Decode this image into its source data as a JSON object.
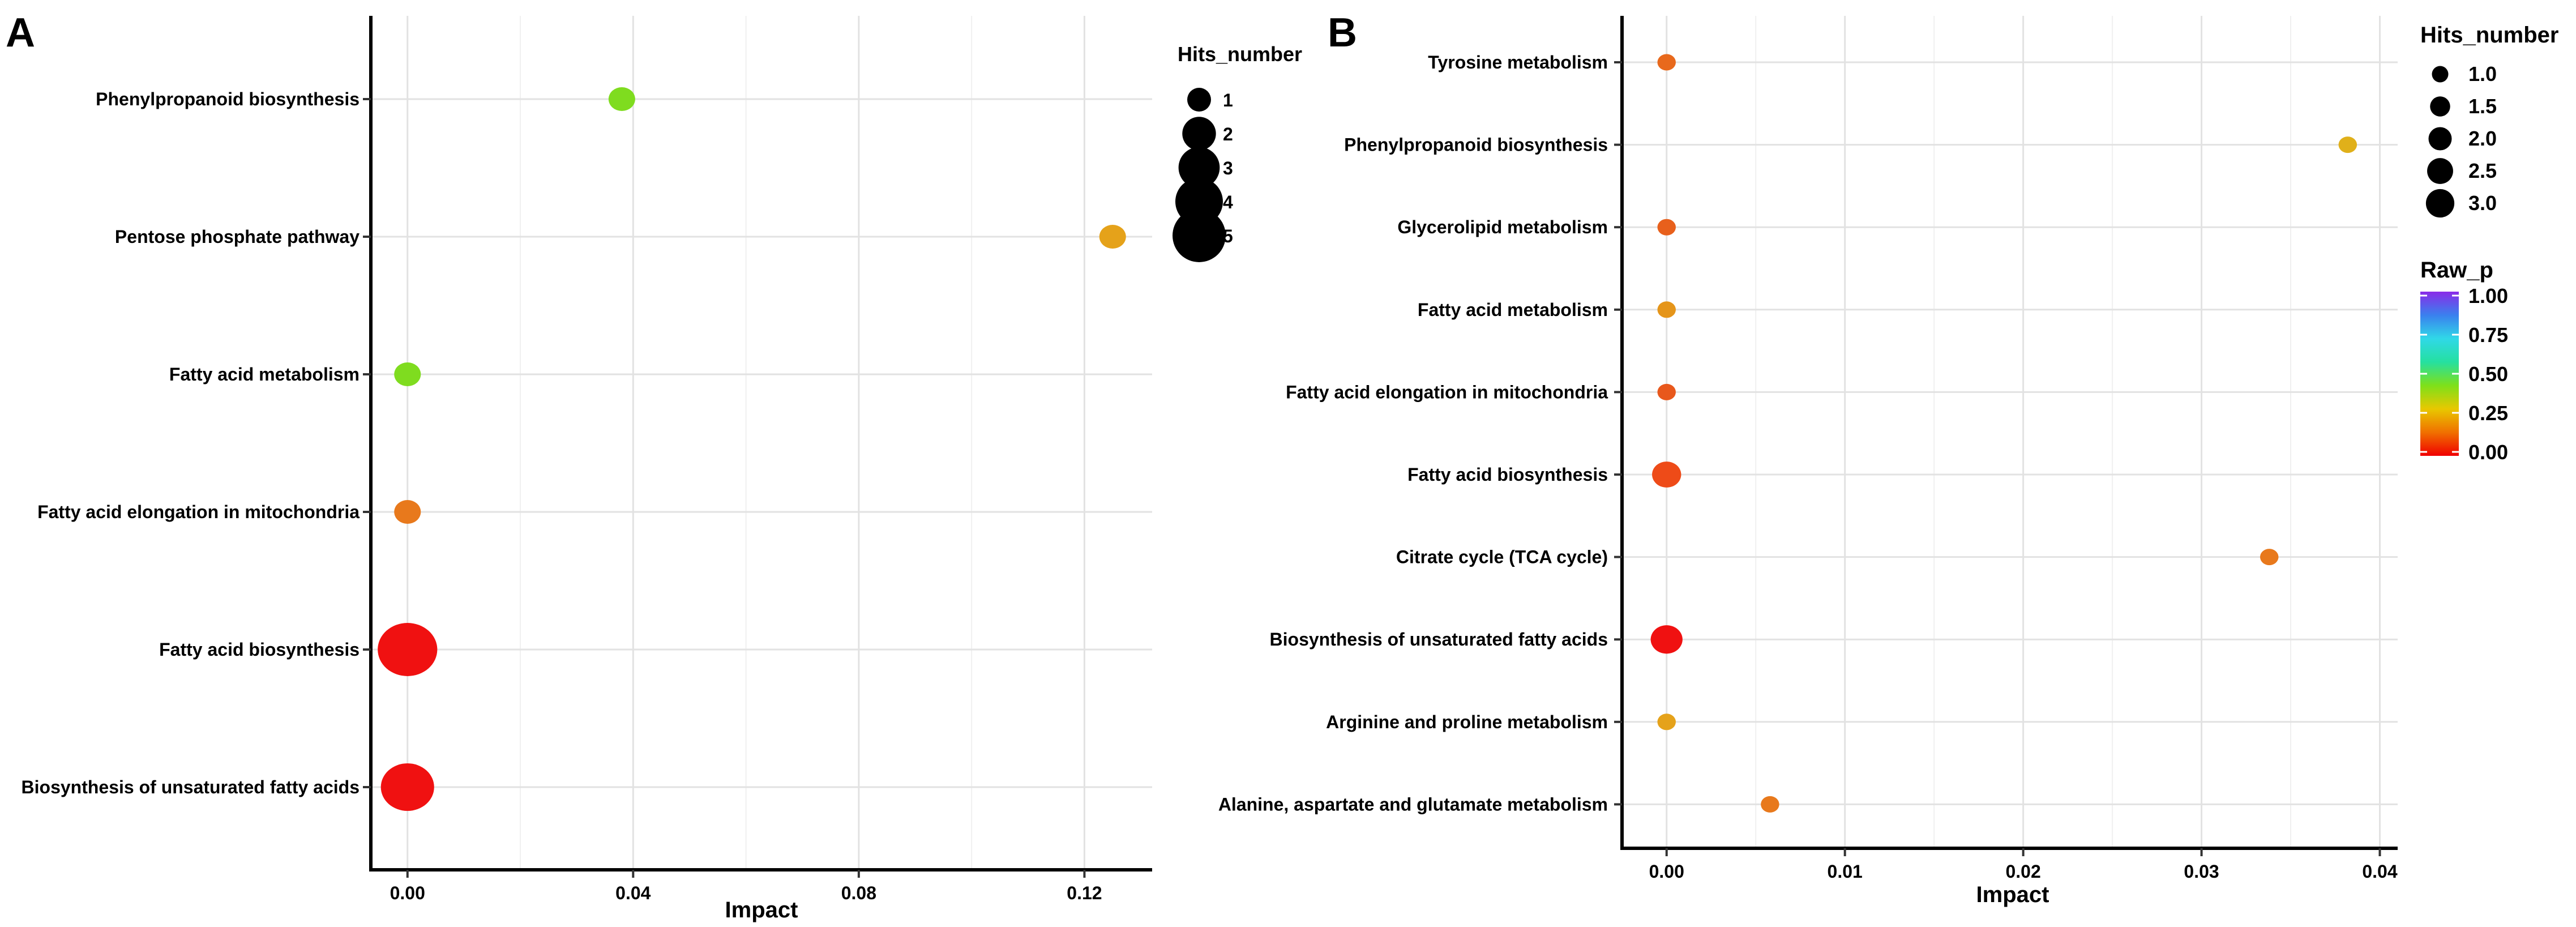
{
  "figure": {
    "panels": [
      "A",
      "B"
    ]
  },
  "chart_data": [
    {
      "panel": "A",
      "type": "scatter",
      "title": "",
      "xlabel": "Impact",
      "ylabel": "",
      "xlim": [
        -0.0065,
        0.132
      ],
      "x_ticks": [
        0.0,
        0.04,
        0.08,
        0.12
      ],
      "x_tick_labels": [
        "0.00",
        "0.04",
        "0.08",
        "0.12"
      ],
      "categories": [
        "Phenylpropanoid biosynthesis",
        "Pentose phosphate pathway",
        "Fatty acid metabolism",
        "Fatty acid elongation in mitochondria",
        "Fatty acid biosynthesis",
        "Biosynthesis of unsaturated fatty acids"
      ],
      "points": [
        {
          "pathway": "Phenylpropanoid biosynthesis",
          "impact": 0.038,
          "hits": 1,
          "raw_p": 0.27,
          "color": "#7fdc1f"
        },
        {
          "pathway": "Pentose phosphate pathway",
          "impact": 0.125,
          "hits": 1,
          "raw_p": 0.12,
          "color": "#e5a21a"
        },
        {
          "pathway": "Fatty acid metabolism",
          "impact": 0.0,
          "hits": 1,
          "raw_p": 0.27,
          "color": "#7fdc1f"
        },
        {
          "pathway": "Fatty acid elongation in mitochondria",
          "impact": 0.0,
          "hits": 1,
          "raw_p": 0.08,
          "color": "#e8791c"
        },
        {
          "pathway": "Fatty acid biosynthesis",
          "impact": 0.0,
          "hits": 5,
          "raw_p": 0.0,
          "color": "#f01111"
        },
        {
          "pathway": "Biosynthesis of unsaturated fatty acids",
          "impact": 0.0,
          "hits": 4,
          "raw_p": 0.0,
          "color": "#f01111"
        }
      ],
      "size_legend": {
        "title": "Hits_number",
        "labels": [
          "1",
          "2",
          "3",
          "4",
          "5"
        ],
        "values": [
          1,
          2,
          3,
          4,
          5
        ]
      }
    },
    {
      "panel": "B",
      "type": "scatter",
      "title": "",
      "xlabel": "Impact",
      "ylabel": "",
      "xlim": [
        -0.0025,
        0.041
      ],
      "x_ticks": [
        0.0,
        0.01,
        0.02,
        0.03,
        0.04
      ],
      "x_tick_labels": [
        "0.00",
        "0.01",
        "0.02",
        "0.03",
        "0.04"
      ],
      "categories": [
        "Tyrosine metabolism",
        "Phenylpropanoid biosynthesis",
        "Glycerolipid metabolism",
        "Fatty acid metabolism",
        "Fatty acid elongation in mitochondria",
        "Fatty acid biosynthesis",
        "Citrate cycle (TCA cycle)",
        "Biosynthesis of unsaturated fatty acids",
        "Arginine and proline metabolism",
        "Alanine, aspartate and glutamate metabolism"
      ],
      "points": [
        {
          "pathway": "Tyrosine metabolism",
          "impact": 0.0,
          "hits": 1,
          "raw_p": 0.06,
          "color": "#e8691c"
        },
        {
          "pathway": "Phenylpropanoid biosynthesis",
          "impact": 0.0382,
          "hits": 1,
          "raw_p": 0.15,
          "color": "#e0b01a"
        },
        {
          "pathway": "Glycerolipid metabolism",
          "impact": 0.0,
          "hits": 1,
          "raw_p": 0.05,
          "color": "#e8601c"
        },
        {
          "pathway": "Fatty acid metabolism",
          "impact": 0.0,
          "hits": 1,
          "raw_p": 0.11,
          "color": "#e5951a"
        },
        {
          "pathway": "Fatty acid elongation in mitochondria",
          "impact": 0.0,
          "hits": 1,
          "raw_p": 0.04,
          "color": "#e8581c"
        },
        {
          "pathway": "Fatty acid biosynthesis",
          "impact": 0.0,
          "hits": 2.5,
          "raw_p": 0.03,
          "color": "#ee4b18"
        },
        {
          "pathway": "Citrate cycle (TCA cycle)",
          "impact": 0.0338,
          "hits": 1,
          "raw_p": 0.08,
          "color": "#e8791c"
        },
        {
          "pathway": "Biosynthesis of unsaturated fatty acids",
          "impact": 0.0,
          "hits": 3,
          "raw_p": 0.0,
          "color": "#f01111"
        },
        {
          "pathway": "Arginine and proline metabolism",
          "impact": 0.0,
          "hits": 1,
          "raw_p": 0.12,
          "color": "#e5a21a"
        },
        {
          "pathway": "Alanine, aspartate and glutamate metabolism",
          "impact": 0.0058,
          "hits": 1,
          "raw_p": 0.08,
          "color": "#e8791c"
        }
      ],
      "size_legend": {
        "title": "Hits_number",
        "labels": [
          "1.0",
          "1.5",
          "2.0",
          "2.5",
          "3.0"
        ],
        "values": [
          1.0,
          1.5,
          2.0,
          2.5,
          3.0
        ]
      },
      "color_legend": {
        "title": "Raw_p",
        "labels": [
          "1.00",
          "0.75",
          "0.50",
          "0.25",
          "0.00"
        ],
        "values": [
          1.0,
          0.75,
          0.5,
          0.25,
          0.0
        ],
        "range": [
          0,
          1
        ],
        "colors": [
          "#f00000",
          "#f07000",
          "#e8c800",
          "#7ee01a",
          "#25e0a0",
          "#30d8e8",
          "#3a80ee",
          "#8a2be8"
        ]
      }
    }
  ]
}
